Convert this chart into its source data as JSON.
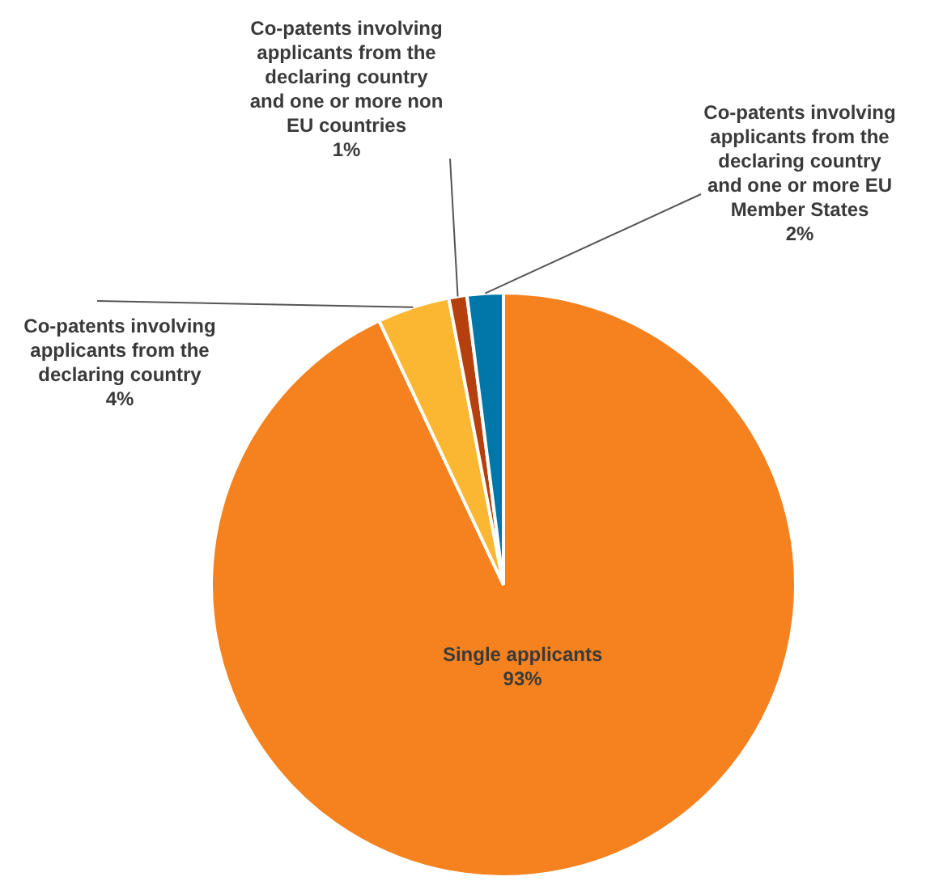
{
  "chart_data": {
    "type": "pie",
    "categories": [
      "Single applicants",
      "Co-patents involving applicants from the declaring country",
      "Co-patents involving applicants from the declaring country and one or more non EU countries",
      "Co-patents involving applicants from the declaring country and one or more EU Member States"
    ],
    "values": [
      93,
      4,
      1,
      2
    ],
    "colors": [
      "#f5821f",
      "#fbb731",
      "#b5400e",
      "#0077a8"
    ],
    "value_labels": [
      "93%",
      "4%",
      "1%",
      "2%"
    ]
  }
}
